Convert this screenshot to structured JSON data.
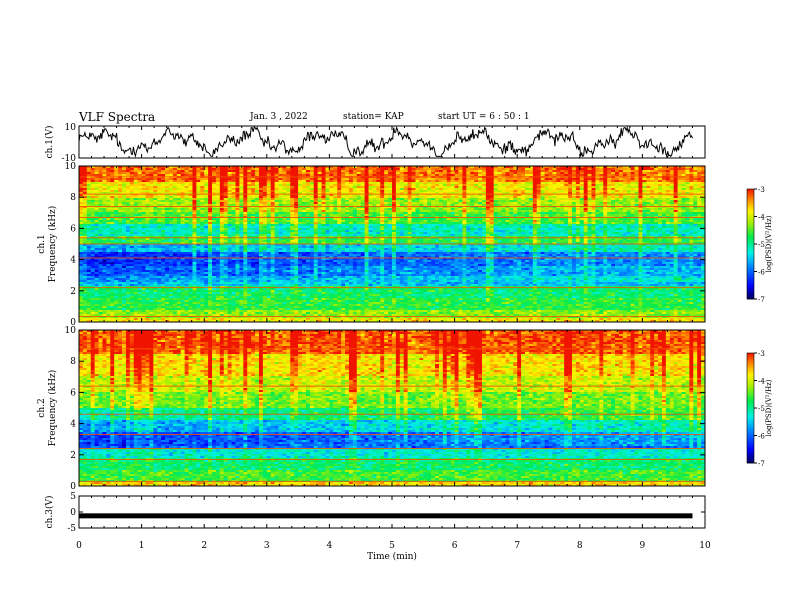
{
  "header": {
    "title": "VLF Spectra",
    "date": "Jan. 3 , 2022",
    "station": "station= KAP",
    "start_ut": "start UT = 6 : 50 : 1"
  },
  "colors": {
    "axis": "#000000",
    "waveform": "#000000",
    "colormap": [
      "#000080",
      "#0000ff",
      "#00ffff",
      "#00ff40",
      "#ffff00",
      "#ff8000",
      "#ff0000",
      "#ffffff"
    ]
  },
  "chart_data": [
    {
      "type": "line",
      "id": "ch1-waveform",
      "ylabel": "ch.1(V)",
      "ylim": [
        -10,
        10
      ],
      "yticks": [
        "10",
        "-10"
      ],
      "xlim": [
        0,
        10
      ],
      "note_series": "noisy waveform oscillating roughly between -8 and 8 V"
    },
    {
      "type": "heatmap",
      "id": "ch1-spectrogram",
      "ylabel_line1": "ch.1",
      "ylabel_line2": "Frequency (kHz)",
      "ylim": [
        0,
        10
      ],
      "yticks": [
        "0",
        "2",
        "4",
        "6",
        "8",
        "10"
      ],
      "xlim": [
        0,
        10
      ],
      "colorbar": {
        "label": "log(PSD)(V²/Hz)",
        "range": [
          -7,
          -3
        ],
        "ticks": [
          "-3",
          "-4",
          "-5",
          "-6",
          "-7"
        ]
      },
      "bands_log_psd": [
        {
          "f": [
            0.0,
            0.3
          ],
          "v": -3.8
        },
        {
          "f": [
            0.3,
            0.8
          ],
          "v": -4.3
        },
        {
          "f": [
            0.8,
            1.5
          ],
          "v": -4.7
        },
        {
          "f": [
            1.5,
            2.3
          ],
          "v": -4.9
        },
        {
          "f": [
            2.3,
            3.0
          ],
          "v": -5.6
        },
        {
          "f": [
            3.0,
            3.6
          ],
          "v": -5.9
        },
        {
          "f": [
            3.6,
            4.5
          ],
          "v": -6.1
        },
        {
          "f": [
            4.5,
            5.0
          ],
          "v": -5.5
        },
        {
          "f": [
            5.0,
            5.5
          ],
          "v": -4.8
        },
        {
          "f": [
            5.5,
            6.3
          ],
          "v": -5.3
        },
        {
          "f": [
            6.3,
            7.0
          ],
          "v": -4.7
        },
        {
          "f": [
            7.0,
            8.0
          ],
          "v": -4.4
        },
        {
          "f": [
            8.0,
            9.0
          ],
          "v": -4.0
        },
        {
          "f": [
            9.0,
            10.0
          ],
          "v": -3.5
        }
      ],
      "lines_khz": [
        0.35,
        2.2,
        4.1,
        5.0,
        5.4,
        6.7,
        7.4,
        8.2,
        9.3
      ]
    },
    {
      "type": "heatmap",
      "id": "ch2-spectrogram",
      "ylabel_line1": "ch.2",
      "ylabel_line2": "Frequency (kHz)",
      "ylim": [
        0,
        10
      ],
      "yticks": [
        "0",
        "2",
        "4",
        "6",
        "8",
        "10"
      ],
      "xlim": [
        0,
        10
      ],
      "colorbar": {
        "label": "log(PSD)(V²/Hz)",
        "range": [
          -7,
          -3
        ],
        "ticks": [
          "-3",
          "-4",
          "-5",
          "-6",
          "-7"
        ]
      },
      "bands_log_psd": [
        {
          "f": [
            0.0,
            0.3
          ],
          "v": -3.7
        },
        {
          "f": [
            0.3,
            1.0
          ],
          "v": -4.6
        },
        {
          "f": [
            1.0,
            1.8
          ],
          "v": -4.9
        },
        {
          "f": [
            1.8,
            2.5
          ],
          "v": -5.3
        },
        {
          "f": [
            2.5,
            3.4
          ],
          "v": -6.0
        },
        {
          "f": [
            3.4,
            4.2
          ],
          "v": -5.5
        },
        {
          "f": [
            4.2,
            5.0
          ],
          "v": -4.9
        },
        {
          "f": [
            5.0,
            6.0
          ],
          "v": -4.5
        },
        {
          "f": [
            6.0,
            7.0
          ],
          "v": -4.2
        },
        {
          "f": [
            7.0,
            8.5
          ],
          "v": -3.9
        },
        {
          "f": [
            8.5,
            10.0
          ],
          "v": -3.4
        }
      ],
      "lines_khz": [
        0.3,
        1.7,
        2.4,
        3.3,
        4.6,
        6.4,
        8.8
      ]
    },
    {
      "type": "line",
      "id": "ch3-waveform",
      "ylabel": "ch.3(V)",
      "ylim": [
        -5,
        5
      ],
      "yticks": [
        "5",
        "0",
        "-5"
      ],
      "xlim": [
        0,
        10
      ],
      "xticks": [
        "0",
        "1",
        "2",
        "3",
        "4",
        "5",
        "6",
        "7",
        "8",
        "9",
        "10"
      ],
      "xlabel": "Time (min)",
      "constant_level_v": -1.2
    }
  ]
}
